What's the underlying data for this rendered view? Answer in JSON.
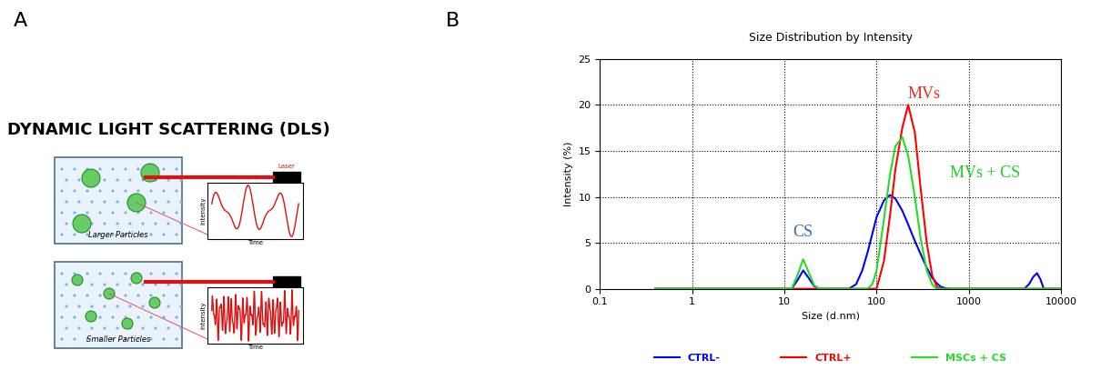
{
  "panel_labels": [
    "A",
    "B"
  ],
  "diagram": {
    "title": "DYNAMIC LIGHT SCATTERING (DLS)",
    "cuvettes": [
      {
        "label": "Larger Particles"
      },
      {
        "label": "Smaller Particles"
      }
    ],
    "laser_label": "Laser",
    "trace_axes": {
      "y_label": "Intensity",
      "x_label": "Time"
    }
  },
  "chart_data": {
    "type": "line",
    "title": "Size Distribution by Intensity",
    "x_label": "Size (d.nm)",
    "y_label": "Intensity (%)",
    "log": "x",
    "grid": true,
    "legend": "lower center",
    "xlim": [
      0.1,
      10000
    ],
    "xticks": [
      0.1,
      1,
      10,
      100,
      1000,
      10000
    ],
    "ylim": [
      0,
      25
    ],
    "yticks": [
      0,
      5,
      10,
      15,
      20,
      25
    ],
    "x": [
      0.4,
      10,
      12,
      14,
      16,
      18,
      21,
      24,
      50,
      60,
      70,
      80,
      90,
      100,
      120,
      140,
      160,
      190,
      220,
      260,
      300,
      350,
      400,
      450,
      500,
      600,
      4000,
      4500,
      5000,
      5500,
      6000,
      6500,
      10000
    ],
    "series": [
      {
        "name": "CTRL-",
        "color": "#0000ff",
        "values": [
          0,
          0,
          0,
          1.0,
          2.0,
          1.3,
          0.3,
          0,
          0,
          0.5,
          2,
          4,
          6,
          7.8,
          9.6,
          10.2,
          9.8,
          8.5,
          7,
          5.2,
          3.8,
          2.3,
          1.2,
          0.6,
          0.2,
          0,
          0,
          0.5,
          1.3,
          1.7,
          1.0,
          0,
          0
        ]
      },
      {
        "name": "CTRL+",
        "color": "#ff0000",
        "values": [
          0,
          0,
          0,
          0,
          0,
          0,
          0,
          0,
          0,
          0,
          0,
          0,
          0,
          0,
          3,
          8,
          13,
          17.5,
          20,
          17,
          11,
          5,
          1.5,
          0.2,
          0,
          0,
          0,
          0,
          0,
          0,
          0,
          0,
          0
        ]
      },
      {
        "name": "MSCs + CS",
        "color": "#22dd22",
        "values": [
          0,
          0,
          0,
          1.6,
          3.2,
          2.0,
          0.4,
          0,
          0,
          0,
          0,
          0,
          0.5,
          2,
          7.5,
          12.5,
          15.5,
          16.5,
          14.5,
          10,
          5.5,
          2,
          0.5,
          0,
          0,
          0,
          0,
          0,
          0,
          0,
          0,
          0,
          0
        ]
      }
    ],
    "annotations": [
      {
        "text": "CS",
        "x": 16,
        "y": 5.3,
        "color": "#3a6ea5"
      },
      {
        "text": "MVs",
        "x": 330,
        "y": 20.3,
        "color": "#e03020"
      },
      {
        "text": "MVs + CS",
        "x": 1500,
        "y": 11.7,
        "color": "#22cc22"
      }
    ]
  }
}
